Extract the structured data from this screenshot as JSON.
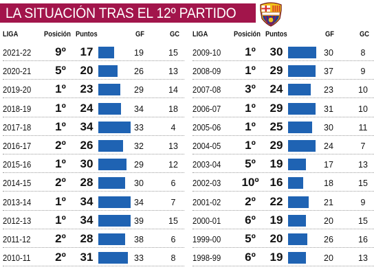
{
  "title": "LA SITUACIÓN TRAS EL 12º PARTIDO",
  "colors": {
    "title_bg": "#a2154b",
    "bar": "#1f63b3"
  },
  "crest_icon": "fc-barcelona-crest-icon",
  "columns": {
    "liga": "LIGA",
    "posicion": "Posición",
    "puntos": "Puntos",
    "gf": "GF",
    "gc": "GC"
  },
  "chart_data": {
    "type": "table",
    "title": "LA SITUACIÓN TRAS EL 12º PARTIDO",
    "bar_column": "Puntos",
    "left": [
      {
        "season": "2021-22",
        "position": "9º",
        "points": 17,
        "gf": 19,
        "gc": 15
      },
      {
        "season": "2020-21",
        "position": "5º",
        "points": 20,
        "gf": 26,
        "gc": 13
      },
      {
        "season": "2019-20",
        "position": "1º",
        "points": 23,
        "gf": 29,
        "gc": 14
      },
      {
        "season": "2018-19",
        "position": "1º",
        "points": 24,
        "gf": 34,
        "gc": 18
      },
      {
        "season": "2017-18",
        "position": "1º",
        "points": 34,
        "gf": 33,
        "gc": 4
      },
      {
        "season": "2016-17",
        "position": "2º",
        "points": 26,
        "gf": 32,
        "gc": 13
      },
      {
        "season": "2015-16",
        "position": "1º",
        "points": 30,
        "gf": 29,
        "gc": 12
      },
      {
        "season": "2014-15",
        "position": "2º",
        "points": 28,
        "gf": 30,
        "gc": 6
      },
      {
        "season": "2013-14",
        "position": "1º",
        "points": 34,
        "gf": 34,
        "gc": 7
      },
      {
        "season": "2012-13",
        "position": "1º",
        "points": 34,
        "gf": 39,
        "gc": 15
      },
      {
        "season": "2011-12",
        "position": "2º",
        "points": 28,
        "gf": 38,
        "gc": 6
      },
      {
        "season": "2010-11",
        "position": "2º",
        "points": 31,
        "gf": 33,
        "gc": 8
      }
    ],
    "right": [
      {
        "season": "2009-10",
        "position": "1º",
        "points": 30,
        "gf": 30,
        "gc": 8
      },
      {
        "season": "2008-09",
        "position": "1º",
        "points": 29,
        "gf": 37,
        "gc": 9
      },
      {
        "season": "2007-08",
        "position": "3º",
        "points": 24,
        "gf": 23,
        "gc": 10
      },
      {
        "season": "2006-07",
        "position": "1º",
        "points": 29,
        "gf": 31,
        "gc": 10
      },
      {
        "season": "2005-06",
        "position": "1º",
        "points": 25,
        "gf": 30,
        "gc": 11
      },
      {
        "season": "2004-05",
        "position": "1º",
        "points": 29,
        "gf": 24,
        "gc": 7
      },
      {
        "season": "2003-04",
        "position": "5º",
        "points": 19,
        "gf": 17,
        "gc": 13
      },
      {
        "season": "2002-03",
        "position": "10º",
        "points": 16,
        "gf": 18,
        "gc": 15
      },
      {
        "season": "2001-02",
        "position": "2º",
        "points": 22,
        "gf": 21,
        "gc": 9
      },
      {
        "season": "2000-01",
        "position": "6º",
        "points": 19,
        "gf": 20,
        "gc": 15
      },
      {
        "season": "1999-00",
        "position": "5º",
        "points": 20,
        "gf": 26,
        "gc": 16
      },
      {
        "season": "1998-99",
        "position": "6º",
        "points": 19,
        "gf": 20,
        "gc": 13
      }
    ]
  }
}
